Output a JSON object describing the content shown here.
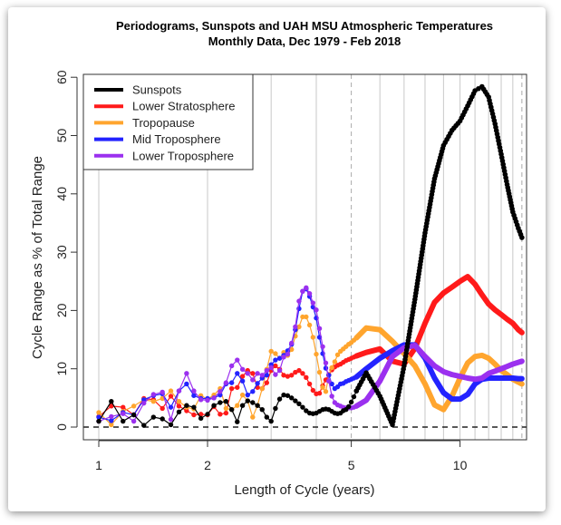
{
  "chart_data": {
    "type": "line",
    "title": "Periodograms, Sunspots and UAH MSU Atmospheric Temperatures",
    "subtitle": "Monthly Data, Dec 1979 - Feb 2018",
    "xlabel": "Length of Cycle (years)",
    "ylabel": "Cycle Range as % of Total Range",
    "x_scale": "log",
    "xlim": [
      0.906,
      15.3
    ],
    "ylim": [
      -2.3,
      60.7
    ],
    "x_ticks": [
      "1",
      "2",
      "5",
      "10"
    ],
    "y_ticks": [
      "0",
      "10",
      "20",
      "30",
      "40",
      "50",
      "60"
    ],
    "x_gridlines": [
      1,
      2,
      3,
      4,
      6,
      7,
      8,
      9,
      10,
      11,
      12,
      13,
      14
    ],
    "x_dashed_lines": [
      5,
      14.833
    ],
    "y_dashed_line": 0,
    "legend_position": "top-left",
    "x": [
      1,
      1.083,
      1.167,
      1.25,
      1.333,
      1.417,
      1.5,
      1.583,
      1.667,
      1.75,
      1.833,
      1.917,
      2,
      2.083,
      2.167,
      2.25,
      2.333,
      2.417,
      2.5,
      2.583,
      2.667,
      2.75,
      2.833,
      2.917,
      3,
      3.083,
      3.167,
      3.25,
      3.333,
      3.417,
      3.5,
      3.583,
      3.667,
      3.75,
      3.833,
      3.917,
      4,
      4.083,
      4.167,
      4.25,
      4.333,
      4.417,
      4.5,
      4.583,
      4.667,
      4.75,
      4.833,
      4.917,
      5,
      5.083,
      5.167,
      5.5,
      6,
      6.5,
      7,
      7.5,
      8,
      8.5,
      9,
      9.5,
      10,
      10.5,
      11,
      11.5,
      12,
      12.5,
      13,
      13.5,
      14,
      14.5,
      14.833
    ],
    "series": [
      {
        "name": "Sunspots",
        "color": "#000000",
        "values": [
          1.0,
          4.4,
          1.0,
          2.1,
          0.3,
          1.7,
          1.4,
          0.4,
          2.6,
          3.7,
          3.4,
          1.5,
          2.2,
          3.7,
          4.2,
          4.4,
          3.0,
          0.9,
          3.7,
          4.5,
          4.2,
          3.7,
          3.0,
          1.7,
          1.0,
          3.2,
          4.8,
          5.5,
          5.4,
          5.0,
          4.5,
          4.0,
          3.4,
          2.8,
          2.4,
          2.3,
          2.4,
          2.7,
          3.0,
          3.1,
          3.0,
          2.7,
          2.4,
          2.3,
          2.4,
          2.8,
          3.0,
          3.5,
          4.3,
          5.2,
          6.2,
          9.3,
          5.3,
          0.4,
          10.5,
          21.9,
          33.3,
          42.6,
          48.3,
          50.9,
          52.5,
          55.1,
          57.7,
          58.4,
          56.6,
          52,
          46.8,
          41.6,
          36.9,
          34.1,
          32.5
        ]
      },
      {
        "name": "Lower Stratosphere",
        "color": "#ff1a1a",
        "values": [
          1.8,
          3.6,
          3.4,
          2.1,
          4.9,
          4.7,
          3.2,
          5.3,
          3.6,
          2.8,
          2.1,
          2.2,
          2.1,
          3.5,
          2.2,
          2.4,
          6.6,
          6.8,
          8.7,
          9.7,
          9.2,
          6.8,
          6.6,
          7.6,
          9.7,
          10.5,
          9.9,
          8.9,
          8.7,
          8.9,
          9.4,
          9.7,
          9.2,
          8.5,
          7.4,
          6.3,
          5.7,
          5.8,
          7.1,
          8.1,
          9.0,
          9.8,
          10.3,
          10.6,
          10.8,
          11.1,
          11.4,
          11.6,
          11.8,
          12.0,
          12.2,
          12.8,
          13.4,
          11.3,
          10.8,
          13.5,
          17.8,
          21.4,
          23,
          24,
          25,
          25.8,
          24.5,
          22.7,
          21.1,
          20.1,
          19.3,
          18.5,
          17.8,
          16.7,
          16.2
        ]
      },
      {
        "name": "Tropopause",
        "color": "#ffa52e",
        "values": [
          2.5,
          0.4,
          2.7,
          3.6,
          4.7,
          4.4,
          4.9,
          6.2,
          4.4,
          3.4,
          3.1,
          5.4,
          4.8,
          5.5,
          6.6,
          3.2,
          3.0,
          3.7,
          5.5,
          4.5,
          1.7,
          3.7,
          6.6,
          9.9,
          13.0,
          12.6,
          11.8,
          12.8,
          12.3,
          13.3,
          15.6,
          17.2,
          18.9,
          18.9,
          17.5,
          15.4,
          12.5,
          9.4,
          6.8,
          6.1,
          8.9,
          10.2,
          11.2,
          12.4,
          13.0,
          13.4,
          13.8,
          14.2,
          14.5,
          14.9,
          15.3,
          17.0,
          16.7,
          14.7,
          12.6,
          10.5,
          7.4,
          3.8,
          3.0,
          5.3,
          8.4,
          11,
          12.1,
          12.3,
          11.8,
          10.8,
          9.7,
          9,
          8.2,
          7.7,
          7.4
        ]
      },
      {
        "name": "Mid Troposphere",
        "color": "#2323ff",
        "values": [
          1.7,
          1.1,
          2.5,
          2.1,
          4.7,
          5.4,
          5.7,
          3.4,
          6.2,
          7.4,
          5.4,
          4.9,
          4.9,
          5.0,
          5.5,
          7.4,
          7.6,
          9.2,
          7.9,
          5.5,
          6.1,
          7.5,
          8.4,
          8.9,
          10.7,
          11.5,
          11.8,
          12.3,
          13.1,
          14.2,
          16.7,
          20.3,
          23.3,
          23.7,
          22.4,
          20.6,
          18.7,
          15.4,
          12.6,
          10.1,
          8.9,
          7.4,
          6.6,
          6.9,
          7.4,
          7.5,
          7.8,
          8.0,
          8.2,
          8.4,
          8.6,
          10.0,
          11.8,
          13.1,
          14.1,
          14.1,
          11.8,
          8.4,
          5.9,
          4.8,
          4.8,
          5.6,
          7.4,
          8.2,
          8.4,
          8.4,
          8.4,
          8.4,
          8.4,
          8.3,
          8.3
        ]
      },
      {
        "name": "Lower Troposphere",
        "color": "#9b30ef",
        "values": [
          1.0,
          1.8,
          2.3,
          1.0,
          4.1,
          5.6,
          6.0,
          1.3,
          6.2,
          9.2,
          6.2,
          4.7,
          4.6,
          5.0,
          6.1,
          7.6,
          10.5,
          11.5,
          9.9,
          9.2,
          8.1,
          9.2,
          8.9,
          9.7,
          10.2,
          9.0,
          9.7,
          12.0,
          12.5,
          14.4,
          17.2,
          21.6,
          23.3,
          23.9,
          22.9,
          21.3,
          20.1,
          16.9,
          13.8,
          11,
          7.9,
          5.3,
          4.2,
          3.8,
          3.6,
          3.4,
          3.3,
          3.3,
          3.3,
          3.4,
          3.6,
          4.6,
          7.9,
          12.1,
          13.6,
          14.0,
          12.1,
          10.5,
          9.5,
          9.0,
          8.7,
          8.4,
          8.2,
          8.4,
          9.2,
          9.6,
          10.0,
          10.4,
          10.8,
          11.1,
          11.3
        ]
      }
    ]
  }
}
